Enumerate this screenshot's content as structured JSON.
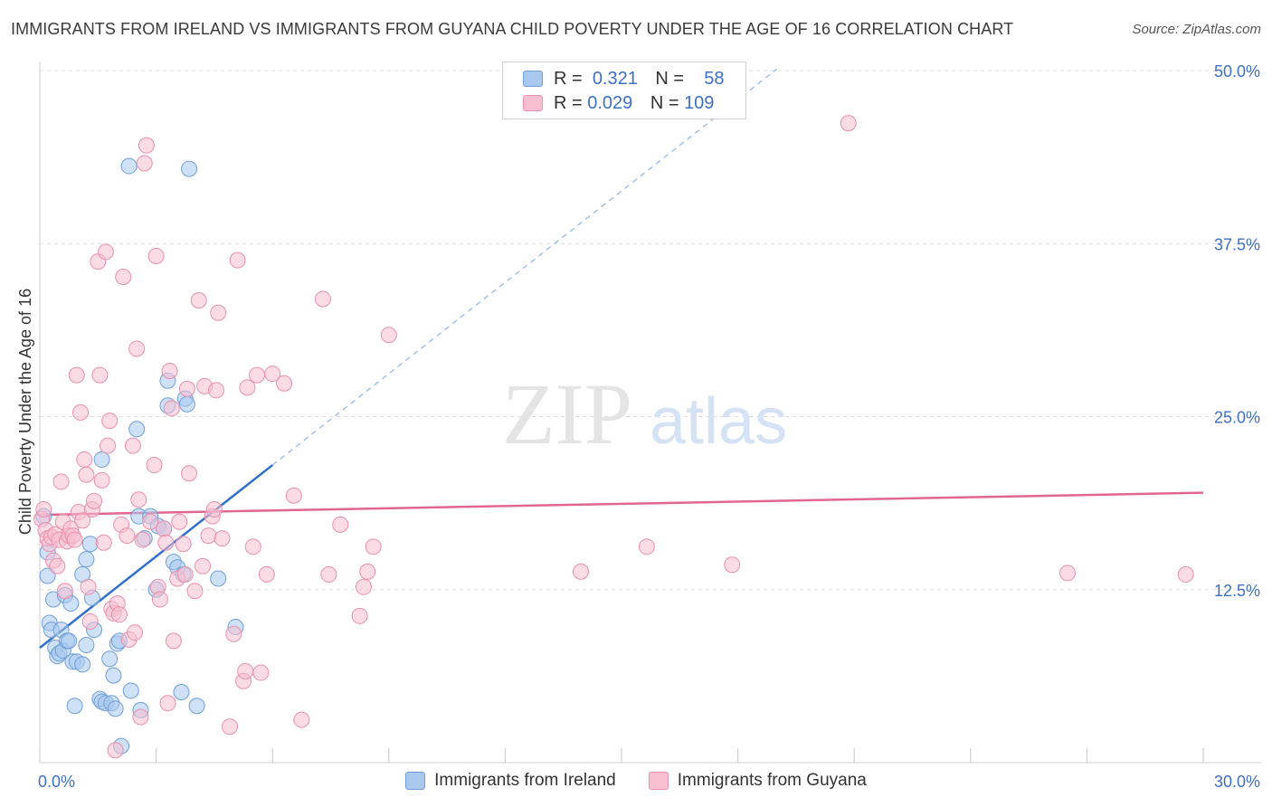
{
  "title": "IMMIGRANTS FROM IRELAND VS IMMIGRANTS FROM GUYANA CHILD POVERTY UNDER THE AGE OF 16 CORRELATION CHART",
  "source": "Source: ZipAtlas.com",
  "watermark": {
    "zip": "ZIP",
    "atlas": "atlas"
  },
  "legend": {
    "r_label": "R =",
    "n_label": "N =",
    "rows": [
      {
        "name": "Immigrants from Ireland",
        "r": "0.321",
        "n": "58",
        "color": "#a8c8ee",
        "stroke": "#6f9fd8"
      },
      {
        "name": "Immigrants from Guyana",
        "r": "0.029",
        "n": "109",
        "color": "#f8bfd0",
        "stroke": "#e890ac"
      }
    ]
  },
  "chart_data": {
    "type": "scatter",
    "title": "IMMIGRANTS FROM IRELAND VS IMMIGRANTS FROM GUYANA CHILD POVERTY UNDER THE AGE OF 16 CORRELATION CHART",
    "xlabel": "",
    "ylabel": "Child Poverty Under the Age of 16",
    "xlim": [
      0,
      30
    ],
    "ylim": [
      0,
      50
    ],
    "x_tick_labels": [
      {
        "value": 0,
        "label": "0.0%"
      },
      {
        "value": 30,
        "label": "30.0%"
      }
    ],
    "y_tick_labels": [
      {
        "value": 12.5,
        "label": "12.5%"
      },
      {
        "value": 25,
        "label": "25.0%"
      },
      {
        "value": 37.5,
        "label": "37.5%"
      },
      {
        "value": 50,
        "label": "50.0%"
      }
    ],
    "grid": true,
    "series": [
      {
        "name": "Immigrants from Ireland",
        "color": "#6f9fd8",
        "fill": "#a8c8ee",
        "trend": {
          "x0": 0,
          "y0": 8.3,
          "x1": 6.0,
          "y1": 21.5,
          "dashed_to_x": 19.0
        },
        "points": [
          [
            0.1,
            17.8
          ],
          [
            0.2,
            15.2
          ],
          [
            0.2,
            13.5
          ],
          [
            0.25,
            10.1
          ],
          [
            0.3,
            9.6
          ],
          [
            0.35,
            11.8
          ],
          [
            0.4,
            8.3
          ],
          [
            0.45,
            7.7
          ],
          [
            0.5,
            7.9
          ],
          [
            0.55,
            9.6
          ],
          [
            0.6,
            8.1
          ],
          [
            0.65,
            12.1
          ],
          [
            0.7,
            8.8
          ],
          [
            0.75,
            8.8
          ],
          [
            0.8,
            11.5
          ],
          [
            0.85,
            7.3
          ],
          [
            0.9,
            4.1
          ],
          [
            0.95,
            7.3
          ],
          [
            1.1,
            7.1
          ],
          [
            1.1,
            13.6
          ],
          [
            1.2,
            14.7
          ],
          [
            1.2,
            8.5
          ],
          [
            1.3,
            15.8
          ],
          [
            1.35,
            11.9
          ],
          [
            1.4,
            9.6
          ],
          [
            1.6,
            21.9
          ],
          [
            1.55,
            4.6
          ],
          [
            1.6,
            4.4
          ],
          [
            1.7,
            4.3
          ],
          [
            1.8,
            7.5
          ],
          [
            1.85,
            4.3
          ],
          [
            1.9,
            6.3
          ],
          [
            1.95,
            3.9
          ],
          [
            2.0,
            8.6
          ],
          [
            2.05,
            8.8
          ],
          [
            2.1,
            1.2
          ],
          [
            2.3,
            43.1
          ],
          [
            2.35,
            5.2
          ],
          [
            2.5,
            24.1
          ],
          [
            2.55,
            17.8
          ],
          [
            2.6,
            3.8
          ],
          [
            2.7,
            16.2
          ],
          [
            2.85,
            17.8
          ],
          [
            3.0,
            12.5
          ],
          [
            3.05,
            17.1
          ],
          [
            3.2,
            16.9
          ],
          [
            3.3,
            25.8
          ],
          [
            3.3,
            27.6
          ],
          [
            3.45,
            14.5
          ],
          [
            3.55,
            14.1
          ],
          [
            3.65,
            5.1
          ],
          [
            3.7,
            13.6
          ],
          [
            3.75,
            26.3
          ],
          [
            3.8,
            25.9
          ],
          [
            3.85,
            42.9
          ],
          [
            4.05,
            4.1
          ],
          [
            4.6,
            13.3
          ],
          [
            5.05,
            9.8
          ]
        ]
      },
      {
        "name": "Immigrants from Guyana",
        "color": "#e890ac",
        "fill": "#f8bfd0",
        "trend": {
          "x0": 0,
          "y0": 17.9,
          "x1": 30,
          "y1": 19.5
        },
        "points": [
          [
            0.05,
            17.6
          ],
          [
            0.1,
            18.3
          ],
          [
            0.15,
            16.8
          ],
          [
            0.2,
            16.2
          ],
          [
            0.25,
            15.8
          ],
          [
            0.3,
            16.3
          ],
          [
            0.35,
            14.6
          ],
          [
            0.4,
            16.5
          ],
          [
            0.45,
            14.2
          ],
          [
            0.5,
            16.1
          ],
          [
            0.55,
            20.3
          ],
          [
            0.6,
            17.4
          ],
          [
            0.65,
            12.4
          ],
          [
            0.7,
            16.0
          ],
          [
            0.75,
            16.4
          ],
          [
            0.8,
            16.9
          ],
          [
            0.85,
            16.4
          ],
          [
            0.9,
            16.1
          ],
          [
            0.95,
            28.0
          ],
          [
            1.0,
            18.1
          ],
          [
            1.05,
            25.3
          ],
          [
            1.1,
            17.5
          ],
          [
            1.15,
            21.9
          ],
          [
            1.2,
            20.8
          ],
          [
            1.25,
            12.7
          ],
          [
            1.3,
            10.2
          ],
          [
            1.35,
            18.3
          ],
          [
            1.4,
            18.9
          ],
          [
            1.5,
            36.2
          ],
          [
            1.55,
            28.0
          ],
          [
            1.6,
            20.4
          ],
          [
            1.65,
            15.9
          ],
          [
            1.7,
            36.9
          ],
          [
            1.75,
            22.9
          ],
          [
            1.8,
            24.7
          ],
          [
            1.85,
            11.1
          ],
          [
            1.9,
            10.8
          ],
          [
            1.95,
            0.9
          ],
          [
            2.0,
            11.5
          ],
          [
            2.05,
            10.7
          ],
          [
            2.1,
            17.2
          ],
          [
            2.15,
            35.1
          ],
          [
            2.25,
            16.4
          ],
          [
            2.3,
            8.9
          ],
          [
            2.4,
            22.9
          ],
          [
            2.45,
            9.4
          ],
          [
            2.5,
            29.9
          ],
          [
            2.55,
            19.0
          ],
          [
            2.6,
            3.3
          ],
          [
            2.65,
            16.1
          ],
          [
            2.7,
            43.3
          ],
          [
            2.75,
            44.6
          ],
          [
            2.85,
            17.4
          ],
          [
            2.95,
            21.5
          ],
          [
            3.0,
            36.6
          ],
          [
            3.05,
            12.7
          ],
          [
            3.1,
            11.8
          ],
          [
            3.2,
            16.9
          ],
          [
            3.25,
            15.9
          ],
          [
            3.3,
            4.3
          ],
          [
            3.35,
            28.3
          ],
          [
            3.4,
            25.6
          ],
          [
            3.45,
            8.8
          ],
          [
            3.55,
            13.3
          ],
          [
            3.6,
            17.4
          ],
          [
            3.7,
            15.8
          ],
          [
            3.75,
            13.6
          ],
          [
            3.8,
            27.0
          ],
          [
            3.85,
            20.9
          ],
          [
            4.0,
            12.4
          ],
          [
            4.1,
            33.4
          ],
          [
            4.2,
            14.2
          ],
          [
            4.25,
            27.2
          ],
          [
            4.35,
            16.4
          ],
          [
            4.45,
            17.8
          ],
          [
            4.5,
            18.3
          ],
          [
            4.55,
            26.9
          ],
          [
            4.6,
            32.5
          ],
          [
            4.7,
            16.2
          ],
          [
            4.9,
            2.6
          ],
          [
            5.0,
            9.3
          ],
          [
            5.1,
            36.3
          ],
          [
            5.25,
            5.9
          ],
          [
            5.3,
            6.6
          ],
          [
            5.35,
            27.1
          ],
          [
            5.5,
            15.6
          ],
          [
            5.6,
            28.0
          ],
          [
            5.7,
            6.5
          ],
          [
            5.85,
            13.6
          ],
          [
            6.0,
            28.1
          ],
          [
            6.3,
            27.4
          ],
          [
            6.55,
            19.3
          ],
          [
            6.75,
            3.1
          ],
          [
            7.3,
            33.5
          ],
          [
            7.45,
            13.6
          ],
          [
            7.75,
            17.2
          ],
          [
            8.25,
            10.6
          ],
          [
            8.35,
            12.7
          ],
          [
            8.45,
            13.8
          ],
          [
            8.6,
            15.6
          ],
          [
            9.0,
            30.9
          ],
          [
            13.95,
            13.8
          ],
          [
            15.65,
            15.6
          ],
          [
            17.85,
            14.3
          ],
          [
            20.85,
            46.2
          ],
          [
            26.5,
            13.7
          ],
          [
            29.55,
            13.6
          ]
        ]
      }
    ]
  }
}
